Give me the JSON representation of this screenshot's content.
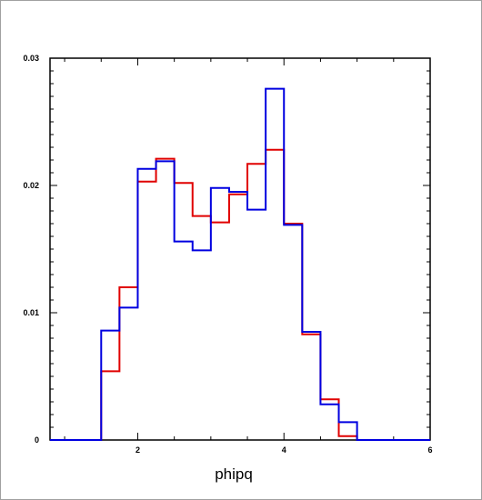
{
  "chart_data": {
    "type": "histogram",
    "title": "",
    "xlabel": "phipq",
    "ylabel": "",
    "xlim": [
      0.8,
      6
    ],
    "ylim": [
      0,
      0.03
    ],
    "x_ticks": [
      {
        "value": 2,
        "label": "2"
      },
      {
        "value": 4,
        "label": "4"
      },
      {
        "value": 6,
        "label": "6"
      }
    ],
    "y_ticks": [
      {
        "value": 0,
        "label": "0"
      },
      {
        "value": 0.01,
        "label": "0.01"
      },
      {
        "value": 0.02,
        "label": "0.02"
      },
      {
        "value": 0.03,
        "label": "0.03"
      }
    ],
    "grid": false,
    "bin_edges": [
      0.8,
      1.0,
      1.25,
      1.5,
      1.75,
      2.0,
      2.25,
      2.5,
      2.75,
      3.0,
      3.25,
      3.5,
      3.75,
      4.0,
      4.25,
      4.5,
      4.75,
      5.0,
      5.25,
      5.5,
      5.75,
      6.0
    ],
    "series": [
      {
        "color": "#e00000",
        "values": [
          0,
          0,
          0,
          0.0054,
          0.012,
          0.0203,
          0.0221,
          0.0202,
          0.0176,
          0.0171,
          0.0193,
          0.0217,
          0.0228,
          0.017,
          0.0083,
          0.0032,
          0.0003,
          0,
          0,
          0,
          0
        ]
      },
      {
        "color": "#0000e0",
        "values": [
          0,
          0,
          0,
          0.0086,
          0.0104,
          0.0213,
          0.0219,
          0.0156,
          0.0149,
          0.0198,
          0.0195,
          0.0181,
          0.0276,
          0.0169,
          0.0085,
          0.0028,
          0.0014,
          0,
          0,
          0,
          0
        ]
      }
    ]
  }
}
